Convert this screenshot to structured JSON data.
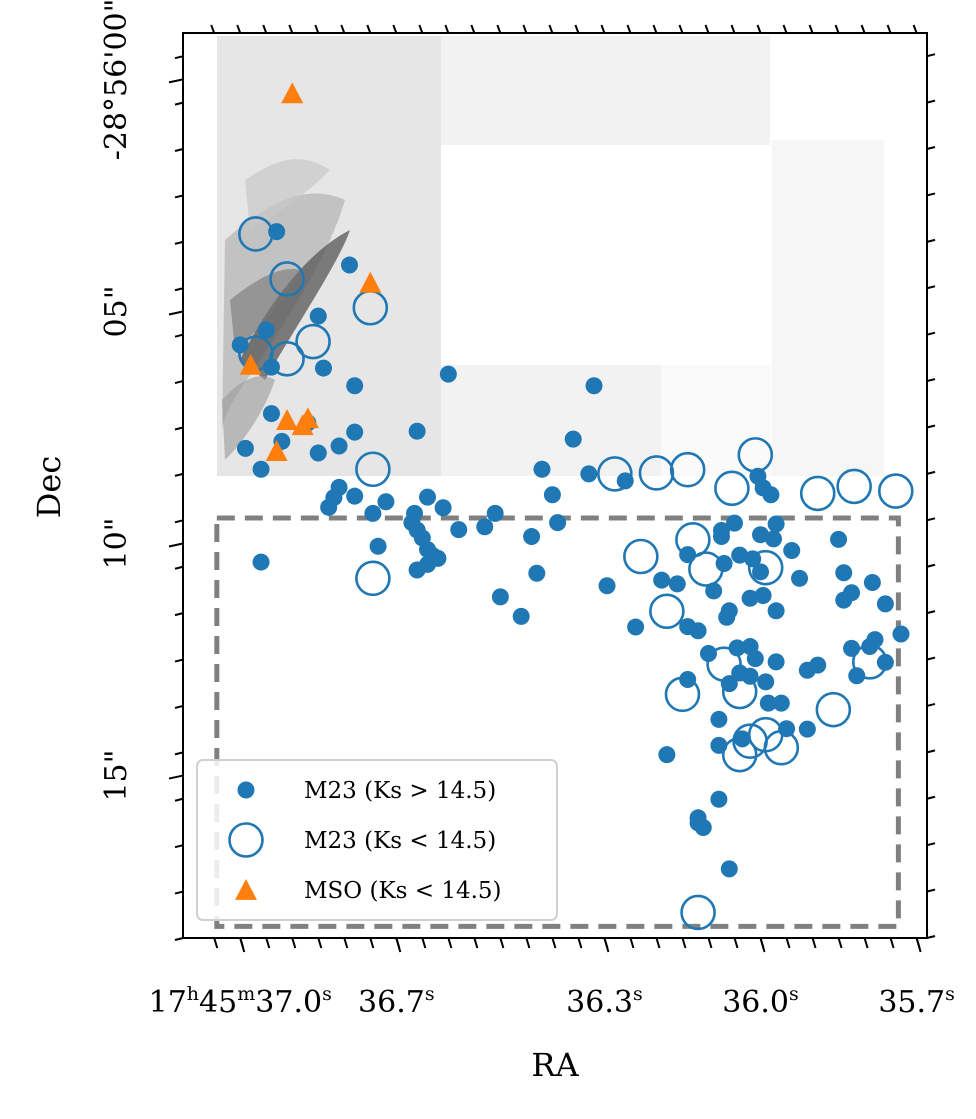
{
  "chart_data": {
    "type": "scatter",
    "title": "",
    "xlabel": "RA",
    "ylabel": "Dec",
    "x_unit": "RA seconds past 17h45m",
    "y_unit": "arcsec past -28d56m00s (south positive, downward)",
    "xlim": [
      37.11,
      35.68
    ],
    "ylim": [
      -1.0,
      18.5
    ],
    "x_ticks": [
      {
        "value": 37.0,
        "label_parts": [
          "17",
          "h",
          "45",
          "m",
          "37.0",
          "s"
        ]
      },
      {
        "value": 36.7,
        "label_parts": [
          "36.7",
          "s"
        ]
      },
      {
        "value": 36.3,
        "label_parts": [
          "36.3",
          "s"
        ]
      },
      {
        "value": 36.0,
        "label_parts": [
          "36.0",
          "s"
        ]
      },
      {
        "value": 35.7,
        "label_parts": [
          "35.7",
          "s"
        ]
      }
    ],
    "y_ticks": [
      {
        "value": 0,
        "label": "-28°56'00\""
      },
      {
        "value": 5,
        "label": "05\""
      },
      {
        "value": 10,
        "label": "10\""
      },
      {
        "value": 15,
        "label": "15\""
      }
    ],
    "colors": {
      "m23": "#1f77b4",
      "mso": "#ff7f0e",
      "box": "#808080",
      "axes": "#000000"
    },
    "background_image": "grayscale near-infrared mosaic with dark filamentary emission at upper left; white gap in the upper middle",
    "legend_position": "lower-left",
    "dashed_region": {
      "ra_range": [
        37.045,
        35.735
      ],
      "dec_range": [
        9.45,
        18.25
      ]
    },
    "series": [
      {
        "name": "M23 (Ks > 14.5)",
        "marker": "filled-circle",
        "points": [
          [
            36.93,
            3.28
          ],
          [
            36.94,
            7.2
          ],
          [
            36.92,
            7.8
          ],
          [
            36.87,
            7.4
          ],
          [
            36.95,
            5.4
          ],
          [
            36.94,
            6.2
          ],
          [
            37.0,
            5.72
          ],
          [
            36.85,
            5.1
          ],
          [
            36.84,
            6.22
          ],
          [
            36.99,
            7.95
          ],
          [
            36.79,
            4.0
          ],
          [
            36.96,
            8.4
          ],
          [
            36.96,
            10.4
          ],
          [
            36.82,
            9.01
          ],
          [
            36.81,
            8.79
          ],
          [
            36.83,
            9.22
          ],
          [
            36.85,
            8.05
          ],
          [
            36.78,
            6.6
          ],
          [
            36.78,
            7.6
          ],
          [
            36.81,
            7.9
          ],
          [
            36.78,
            8.98
          ],
          [
            36.745,
            9.35
          ],
          [
            36.72,
            9.1
          ],
          [
            36.735,
            10.06
          ],
          [
            36.67,
            9.55
          ],
          [
            36.66,
            9.71
          ],
          [
            36.64,
            9.0
          ],
          [
            36.665,
            9.35
          ],
          [
            36.64,
            10.13
          ],
          [
            36.64,
            10.45
          ],
          [
            36.66,
            10.57
          ],
          [
            36.63,
            10.26
          ],
          [
            36.62,
            10.32
          ],
          [
            36.61,
            9.23
          ],
          [
            36.65,
            9.88
          ],
          [
            36.66,
            7.58
          ],
          [
            36.6,
            6.35
          ],
          [
            36.58,
            9.7
          ],
          [
            36.53,
            9.64
          ],
          [
            36.51,
            9.35
          ],
          [
            36.5,
            11.15
          ],
          [
            36.46,
            11.57
          ],
          [
            36.44,
            9.85
          ],
          [
            36.43,
            10.64
          ],
          [
            36.42,
            8.4
          ],
          [
            36.4,
            8.95
          ],
          [
            36.39,
            9.55
          ],
          [
            36.36,
            7.75
          ],
          [
            36.33,
            8.5
          ],
          [
            36.32,
            6.6
          ],
          [
            36.295,
            10.91
          ],
          [
            36.26,
            8.65
          ],
          [
            36.24,
            11.8
          ],
          [
            36.18,
            14.55
          ],
          [
            36.19,
            10.79
          ],
          [
            36.16,
            10.87
          ],
          [
            36.14,
            12.93
          ],
          [
            36.14,
            11.79
          ],
          [
            36.12,
            15.91
          ],
          [
            36.12,
            16.02
          ],
          [
            36.11,
            16.12
          ],
          [
            36.1,
            12.37
          ],
          [
            36.08,
            15.51
          ],
          [
            36.08,
            14.35
          ],
          [
            36.08,
            13.79
          ],
          [
            36.075,
            9.85
          ],
          [
            36.075,
            9.72
          ],
          [
            36.07,
            10.43
          ],
          [
            36.065,
            11.59
          ],
          [
            36.06,
            13.02
          ],
          [
            36.06,
            17.01
          ],
          [
            36.05,
            9.56
          ],
          [
            36.045,
            12.25
          ],
          [
            36.04,
            12.79
          ],
          [
            36.035,
            14.21
          ],
          [
            36.02,
            12.86
          ],
          [
            36.02,
            12.22
          ],
          [
            36.015,
            10.33
          ],
          [
            36.01,
            12.48
          ],
          [
            35.995,
            11.12
          ],
          [
            35.99,
            12.98
          ],
          [
            35.985,
            13.44
          ],
          [
            36.0,
            9.81
          ],
          [
            36.0,
            10.61
          ],
          [
            36.005,
            8.55
          ],
          [
            35.995,
            8.8
          ],
          [
            35.98,
            8.95
          ],
          [
            35.975,
            9.9
          ],
          [
            35.97,
            9.58
          ],
          [
            35.97,
            11.45
          ],
          [
            35.97,
            12.55
          ],
          [
            35.96,
            13.44
          ],
          [
            35.95,
            13.99
          ],
          [
            35.94,
            10.15
          ],
          [
            35.925,
            10.75
          ],
          [
            35.91,
            14.0
          ],
          [
            35.91,
            12.73
          ],
          [
            35.89,
            12.62
          ],
          [
            35.85,
            9.91
          ],
          [
            35.84,
            10.63
          ],
          [
            35.84,
            11.22
          ],
          [
            35.825,
            11.06
          ],
          [
            35.825,
            12.26
          ],
          [
            35.815,
            12.85
          ],
          [
            35.79,
            12.22
          ],
          [
            35.785,
            10.84
          ],
          [
            35.78,
            12.07
          ],
          [
            35.76,
            12.56
          ],
          [
            35.76,
            11.3
          ],
          [
            35.73,
            11.95
          ],
          [
            36.14,
            10.24
          ],
          [
            36.09,
            11.02
          ],
          [
            36.06,
            11.45
          ],
          [
            36.12,
            11.88
          ],
          [
            36.04,
            10.25
          ],
          [
            36.02,
            11.18
          ]
        ]
      },
      {
        "name": "M23 (Ks < 14.5)",
        "marker": "open-circle",
        "points": [
          [
            36.97,
            3.33
          ],
          [
            36.91,
            4.3
          ],
          [
            36.97,
            5.9
          ],
          [
            36.91,
            6.02
          ],
          [
            36.86,
            5.65
          ],
          [
            36.75,
            4.92
          ],
          [
            36.745,
            8.4
          ],
          [
            36.745,
            10.75
          ],
          [
            36.28,
            8.5
          ],
          [
            36.23,
            10.28
          ],
          [
            36.2,
            8.48
          ],
          [
            36.14,
            8.41
          ],
          [
            36.13,
            9.92
          ],
          [
            36.105,
            10.55
          ],
          [
            36.055,
            8.81
          ],
          [
            36.01,
            8.09
          ],
          [
            35.99,
            10.52
          ],
          [
            35.89,
            8.92
          ],
          [
            35.86,
            13.58
          ],
          [
            35.82,
            8.77
          ],
          [
            35.79,
            12.55
          ],
          [
            36.04,
            13.19
          ],
          [
            35.99,
            14.12
          ],
          [
            36.04,
            14.55
          ],
          [
            35.96,
            14.4
          ],
          [
            35.74,
            8.87
          ],
          [
            36.07,
            12.6
          ],
          [
            36.18,
            11.46
          ],
          [
            36.15,
            13.25
          ],
          [
            36.02,
            14.26
          ],
          [
            36.12,
            17.95
          ]
        ]
      },
      {
        "name": "MSO (Ks < 14.5)",
        "marker": "triangle",
        "points": [
          [
            36.9,
            0.3
          ],
          [
            36.75,
            4.38
          ],
          [
            36.98,
            6.15
          ],
          [
            36.91,
            7.34
          ],
          [
            36.88,
            7.45
          ],
          [
            36.87,
            7.3
          ],
          [
            36.93,
            8.01
          ]
        ]
      }
    ]
  }
}
